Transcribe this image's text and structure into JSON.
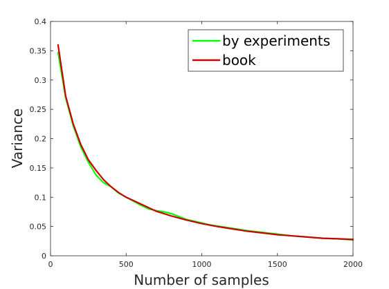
{
  "chart_data": {
    "type": "line",
    "title": "",
    "xlabel": "Number of samples",
    "ylabel": "Variance",
    "xlim": [
      0,
      2000
    ],
    "ylim": [
      0,
      0.4
    ],
    "xticks": [
      0,
      500,
      1000,
      1500,
      2000
    ],
    "xtick_labels": [
      "0",
      "500",
      "1000",
      "1500",
      "2000"
    ],
    "yticks": [
      0,
      0.05,
      0.1,
      0.15,
      0.2,
      0.25,
      0.3,
      0.35,
      0.4
    ],
    "ytick_labels": [
      "0",
      "0.05",
      "0.1",
      "0.15",
      "0.2",
      "0.25",
      "0.3",
      "0.35",
      "0.4"
    ],
    "grid": false,
    "legend": "top-right",
    "series": [
      {
        "name": "by experiments",
        "color": "#00ff00",
        "x": [
          50,
          100,
          150,
          200,
          250,
          300,
          350,
          400,
          450,
          500,
          550,
          600,
          650,
          700,
          750,
          800,
          850,
          900,
          950,
          1000,
          1050,
          1100,
          1150,
          1200,
          1300,
          1400,
          1500,
          1600,
          1700,
          1800,
          1900,
          2000
        ],
        "y": [
          0.347,
          0.27,
          0.222,
          0.186,
          0.16,
          0.138,
          0.125,
          0.118,
          0.107,
          0.1,
          0.093,
          0.086,
          0.08,
          0.077,
          0.075,
          0.072,
          0.067,
          0.062,
          0.059,
          0.056,
          0.053,
          0.051,
          0.049,
          0.047,
          0.043,
          0.04,
          0.037,
          0.034,
          0.032,
          0.03,
          0.029,
          0.027
        ]
      },
      {
        "name": "book",
        "color": "#cc0000",
        "x": [
          50,
          100,
          150,
          200,
          250,
          300,
          350,
          400,
          450,
          500,
          600,
          700,
          800,
          900,
          1000,
          1100,
          1200,
          1300,
          1400,
          1500,
          1600,
          1700,
          1800,
          1900,
          2000
        ],
        "y": [
          0.36,
          0.273,
          0.225,
          0.19,
          0.164,
          0.146,
          0.13,
          0.118,
          0.108,
          0.1,
          0.088,
          0.076,
          0.068,
          0.061,
          0.055,
          0.05,
          0.046,
          0.042,
          0.039,
          0.036,
          0.034,
          0.032,
          0.03,
          0.029,
          0.028
        ]
      }
    ]
  }
}
